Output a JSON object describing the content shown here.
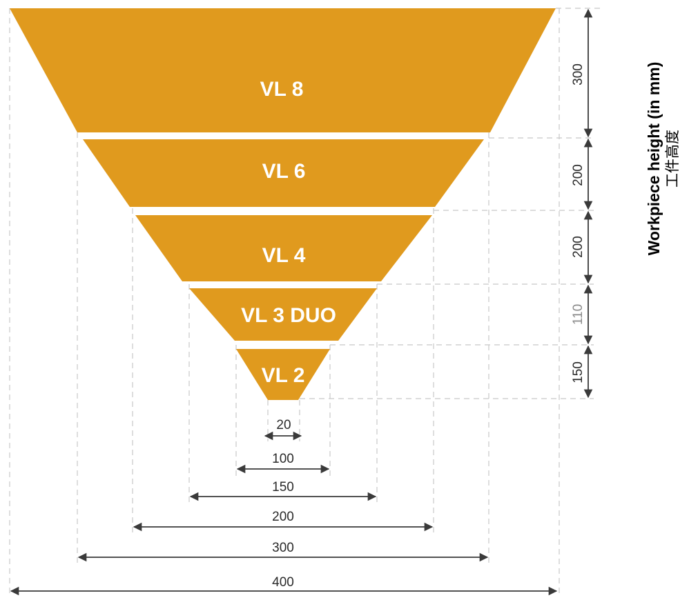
{
  "colors": {
    "tier_fill": "#E09A1E",
    "tier_text": "#FFFFFF",
    "dimension_line": "#3A3A3A",
    "guide_line": "#C8C8C8"
  },
  "tiers": [
    {
      "label": "VL 8",
      "height_mm": "300",
      "width_mm": "400"
    },
    {
      "label": "VL 6",
      "height_mm": "200",
      "width_mm": "300"
    },
    {
      "label": "VL 4",
      "height_mm": "200",
      "width_mm": "200"
    },
    {
      "label": "VL 3 DUO",
      "height_mm": "110",
      "width_mm": "150"
    },
    {
      "label": "VL 2",
      "height_mm": "150",
      "width_mm": "100"
    }
  ],
  "bottom_width_mm": "20",
  "axis_title": {
    "english": "Workpiece height (in mm)",
    "chinese": "工件高度"
  }
}
